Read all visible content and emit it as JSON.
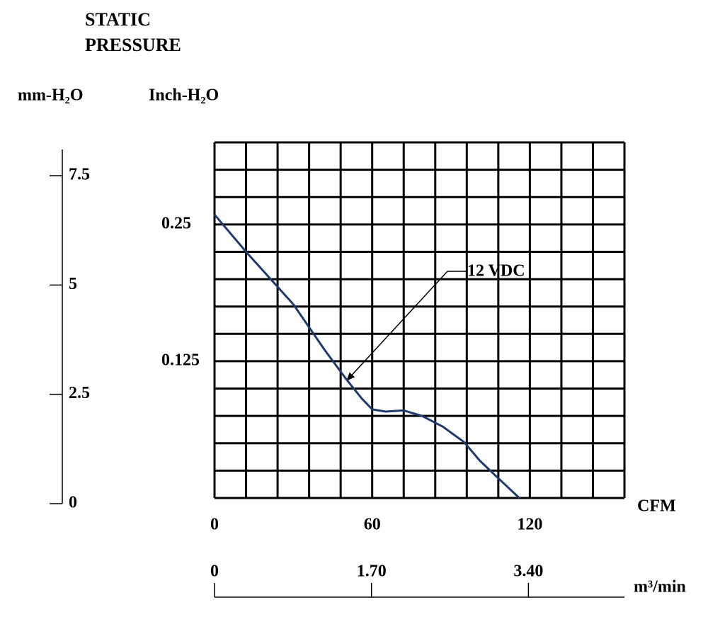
{
  "chart_data": {
    "type": "line",
    "title": "STATIC PRESSURE",
    "x_label": "CFM",
    "y_label": "Inch-H₂O",
    "y2_label": "mm-H₂O",
    "x2_label": "m³/min",
    "x": [
      0,
      12,
      24,
      30,
      36,
      42,
      50,
      56,
      60,
      65,
      72,
      79,
      87,
      95,
      101,
      108,
      116
    ],
    "series": [
      {
        "name": "12 VDC",
        "color": "#1f3a6e",
        "values": [
          0.259,
          0.225,
          0.193,
          0.177,
          0.156,
          0.135,
          0.109,
          0.091,
          0.081,
          0.079,
          0.08,
          0.075,
          0.065,
          0.051,
          0.034,
          0.018,
          0
        ]
      }
    ],
    "xlim": [
      0,
      156
    ],
    "xticks": [
      0,
      60,
      120
    ],
    "xgrid": [
      0,
      12,
      24,
      36,
      48,
      60,
      72,
      84,
      96,
      108,
      120,
      132,
      144,
      156
    ],
    "ylim": [
      0,
      0.325
    ],
    "yticks": [
      0.125,
      0.25
    ],
    "ygrid": [
      0,
      0.025,
      0.05,
      0.075,
      0.1,
      0.125,
      0.15,
      0.175,
      0.2,
      0.225,
      0.25,
      0.275,
      0.3,
      0.325
    ],
    "y2lim": [
      0,
      8.1
    ],
    "y2ticks": [
      0,
      2.5,
      5,
      7.5
    ],
    "x2lim": [
      0,
      4.44
    ],
    "x2ticks": [
      0,
      {
        "value": 1.7,
        "label": "1.70"
      },
      {
        "value": 3.4,
        "label": "3.40"
      }
    ]
  }
}
